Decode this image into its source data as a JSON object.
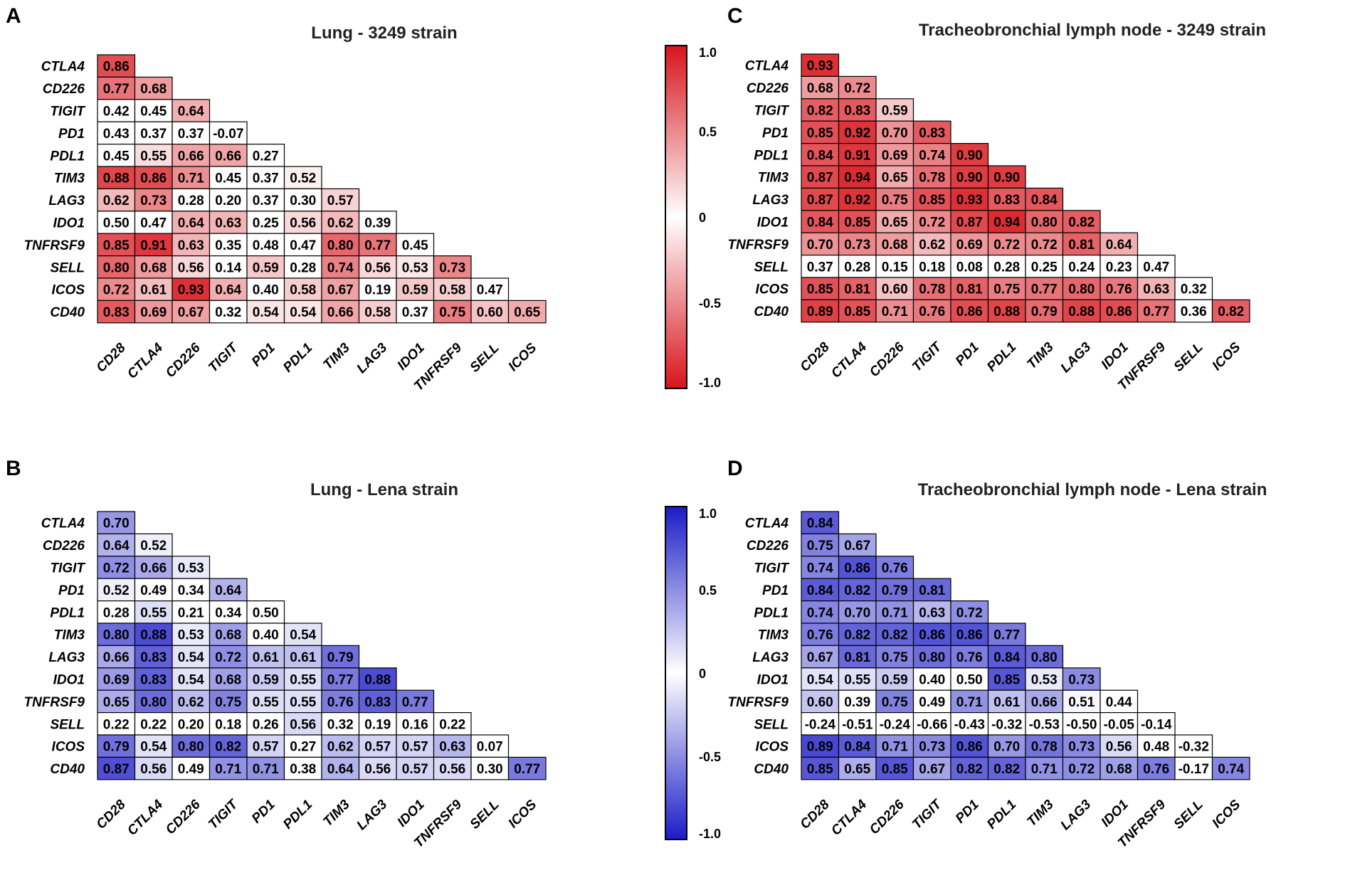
{
  "colorbars": [
    {
      "id": "red",
      "ticks": [
        "1.0",
        "0.5",
        "0",
        "-0.5",
        "-1.0"
      ],
      "color_high": "#d8141b",
      "color_mid": "#ffffff"
    },
    {
      "id": "blue",
      "ticks": [
        "1.0",
        "0.5",
        "0",
        "-0.5",
        "-1.0"
      ],
      "color_high": "#1c1cc8",
      "color_mid": "#ffffff"
    }
  ],
  "chart_data": [
    {
      "panel": "A",
      "type": "heatmap",
      "title": "Lung - 3249 strain",
      "scale": "red",
      "vmin": -1.0,
      "vmax": 1.0,
      "row_labels": [
        "CTLA4",
        "CD226",
        "TIGIT",
        "PD1",
        "PDL1",
        "TIM3",
        "LAG3",
        "IDO1",
        "TNFRSF9",
        "SELL",
        "ICOS",
        "CD40"
      ],
      "col_labels": [
        "CD28",
        "CTLA4",
        "CD226",
        "TIGIT",
        "PD1",
        "PDL1",
        "TIM3",
        "LAG3",
        "IDO1",
        "TNFRSF9",
        "SELL",
        "ICOS"
      ],
      "values": [
        [
          "0.86"
        ],
        [
          "0.77",
          "0.68"
        ],
        [
          "0.42",
          "0.45",
          "0.64"
        ],
        [
          "0.43",
          "0.37",
          "0.37",
          "-0.07"
        ],
        [
          "0.45",
          "0.55",
          "0.66",
          "0.66",
          "0.27"
        ],
        [
          "0.88",
          "0.86",
          "0.71",
          "0.45",
          "0.37",
          "0.52"
        ],
        [
          "0.62",
          "0.73",
          "0.28",
          "0.20",
          "0.37",
          "0.30",
          "0.57"
        ],
        [
          "0.50",
          "0.47",
          "0.64",
          "0.63",
          "0.25",
          "0.56",
          "0.62",
          "0.39"
        ],
        [
          "0.85",
          "0.91",
          "0.63",
          "0.35",
          "0.48",
          "0.47",
          "0.80",
          "0.77",
          "0.45"
        ],
        [
          "0.80",
          "0.68",
          "0.56",
          "0.14",
          "0.59",
          "0.28",
          "0.74",
          "0.56",
          "0.53",
          "0.73"
        ],
        [
          "0.72",
          "0.61",
          "0.93",
          "0.64",
          "0.40",
          "0.58",
          "0.67",
          "0.19",
          "0.59",
          "0.58",
          "0.47"
        ],
        [
          "0.83",
          "0.69",
          "0.67",
          "0.32",
          "0.54",
          "0.54",
          "0.66",
          "0.58",
          "0.37",
          "0.75",
          "0.60",
          "0.65"
        ]
      ]
    },
    {
      "panel": "C",
      "type": "heatmap",
      "title": "Tracheobronchial lymph node - 3249 strain",
      "scale": "red",
      "vmin": -1.0,
      "vmax": 1.0,
      "row_labels": [
        "CTLA4",
        "CD226",
        "TIGIT",
        "PD1",
        "PDL1",
        "TIM3",
        "LAG3",
        "IDO1",
        "TNFRSF9",
        "SELL",
        "ICOS",
        "CD40"
      ],
      "col_labels": [
        "CD28",
        "CTLA4",
        "CD226",
        "TIGIT",
        "PD1",
        "PDL1",
        "TIM3",
        "LAG3",
        "IDO1",
        "TNFRSF9",
        "SELL",
        "ICOS"
      ],
      "values": [
        [
          "0.93"
        ],
        [
          "0.68",
          "0.72"
        ],
        [
          "0.82",
          "0.83",
          "0.59"
        ],
        [
          "0.85",
          "0.92",
          "0.70",
          "0.83"
        ],
        [
          "0.84",
          "0.91",
          "0.69",
          "0.74",
          "0.90"
        ],
        [
          "0.87",
          "0.94",
          "0.65",
          "0.78",
          "0.90",
          "0.90"
        ],
        [
          "0.87",
          "0.92",
          "0.75",
          "0.85",
          "0.93",
          "0.83",
          "0.84"
        ],
        [
          "0.84",
          "0.85",
          "0.65",
          "0.72",
          "0.87",
          "0.94",
          "0.80",
          "0.82"
        ],
        [
          "0.70",
          "0.73",
          "0.68",
          "0.62",
          "0.69",
          "0.72",
          "0.72",
          "0.81",
          "0.64"
        ],
        [
          "0.37",
          "0.28",
          "0.15",
          "0.18",
          "0.08",
          "0.28",
          "0.25",
          "0.24",
          "0.23",
          "0.47"
        ],
        [
          "0.85",
          "0.81",
          "0.60",
          "0.78",
          "0.81",
          "0.75",
          "0.77",
          "0.80",
          "0.76",
          "0.63",
          "0.32"
        ],
        [
          "0.89",
          "0.85",
          "0.71",
          "0.76",
          "0.86",
          "0.88",
          "0.79",
          "0.88",
          "0.86",
          "0.77",
          "0.36",
          "0.82"
        ]
      ]
    },
    {
      "panel": "B",
      "type": "heatmap",
      "title": "Lung - Lena strain",
      "scale": "blue",
      "vmin": -1.0,
      "vmax": 1.0,
      "row_labels": [
        "CTLA4",
        "CD226",
        "TIGIT",
        "PD1",
        "PDL1",
        "TIM3",
        "LAG3",
        "IDO1",
        "TNFRSF9",
        "SELL",
        "ICOS",
        "CD40"
      ],
      "col_labels": [
        "CD28",
        "CTLA4",
        "CD226",
        "TIGIT",
        "PD1",
        "PDL1",
        "TIM3",
        "LAG3",
        "IDO1",
        "TNFRSF9",
        "SELL",
        "ICOS"
      ],
      "values": [
        [
          "0.70"
        ],
        [
          "0.64",
          "0.52"
        ],
        [
          "0.72",
          "0.66",
          "0.53"
        ],
        [
          "0.52",
          "0.49",
          "0.34",
          "0.64"
        ],
        [
          "0.28",
          "0.55",
          "0.21",
          "0.34",
          "0.50"
        ],
        [
          "0.80",
          "0.88",
          "0.53",
          "0.68",
          "0.40",
          "0.54"
        ],
        [
          "0.66",
          "0.83",
          "0.54",
          "0.72",
          "0.61",
          "0.61",
          "0.79"
        ],
        [
          "0.69",
          "0.83",
          "0.54",
          "0.68",
          "0.59",
          "0.55",
          "0.77",
          "0.88"
        ],
        [
          "0.65",
          "0.80",
          "0.62",
          "0.75",
          "0.55",
          "0.55",
          "0.76",
          "0.83",
          "0.77"
        ],
        [
          "0.22",
          "0.22",
          "0.20",
          "0.18",
          "0.26",
          "0.56",
          "0.32",
          "0.19",
          "0.16",
          "0.22"
        ],
        [
          "0.79",
          "0.54",
          "0.80",
          "0.82",
          "0.57",
          "0.27",
          "0.62",
          "0.57",
          "0.57",
          "0.63",
          "0.07"
        ],
        [
          "0.87",
          "0.56",
          "0.49",
          "0.71",
          "0.71",
          "0.38",
          "0.64",
          "0.56",
          "0.57",
          "0.56",
          "0.30",
          "0.77"
        ]
      ]
    },
    {
      "panel": "D",
      "type": "heatmap",
      "title": "Tracheobronchial lymph node - Lena strain",
      "scale": "blue",
      "vmin": -1.0,
      "vmax": 1.0,
      "row_labels": [
        "CTLA4",
        "CD226",
        "TIGIT",
        "PD1",
        "PDL1",
        "TIM3",
        "LAG3",
        "IDO1",
        "TNFRSF9",
        "SELL",
        "ICOS",
        "CD40"
      ],
      "col_labels": [
        "CD28",
        "CTLA4",
        "CD226",
        "TIGIT",
        "PD1",
        "PDL1",
        "TIM3",
        "LAG3",
        "IDO1",
        "TNFRSF9",
        "SELL",
        "ICOS"
      ],
      "values": [
        [
          "0.84"
        ],
        [
          "0.75",
          "0.67"
        ],
        [
          "0.74",
          "0.86",
          "0.76"
        ],
        [
          "0.84",
          "0.82",
          "0.79",
          "0.81"
        ],
        [
          "0.74",
          "0.70",
          "0.71",
          "0.63",
          "0.72"
        ],
        [
          "0.76",
          "0.82",
          "0.82",
          "0.86",
          "0.86",
          "0.77"
        ],
        [
          "0.67",
          "0.81",
          "0.75",
          "0.80",
          "0.76",
          "0.84",
          "0.80"
        ],
        [
          "0.54",
          "0.55",
          "0.59",
          "0.40",
          "0.50",
          "0.85",
          "0.53",
          "0.73"
        ],
        [
          "0.60",
          "0.39",
          "0.75",
          "0.49",
          "0.71",
          "0.61",
          "0.66",
          "0.51",
          "0.44"
        ],
        [
          "-0.24",
          "-0.51",
          "-0.24",
          "-0.66",
          "-0.43",
          "-0.32",
          "-0.53",
          "-0.50",
          "-0.05",
          "-0.14"
        ],
        [
          "0.89",
          "0.84",
          "0.71",
          "0.73",
          "0.86",
          "0.70",
          "0.78",
          "0.73",
          "0.56",
          "0.48",
          "-0.32"
        ],
        [
          "0.85",
          "0.65",
          "0.85",
          "0.67",
          "0.82",
          "0.82",
          "0.71",
          "0.72",
          "0.68",
          "0.76",
          "-0.17",
          "0.74"
        ]
      ]
    }
  ]
}
